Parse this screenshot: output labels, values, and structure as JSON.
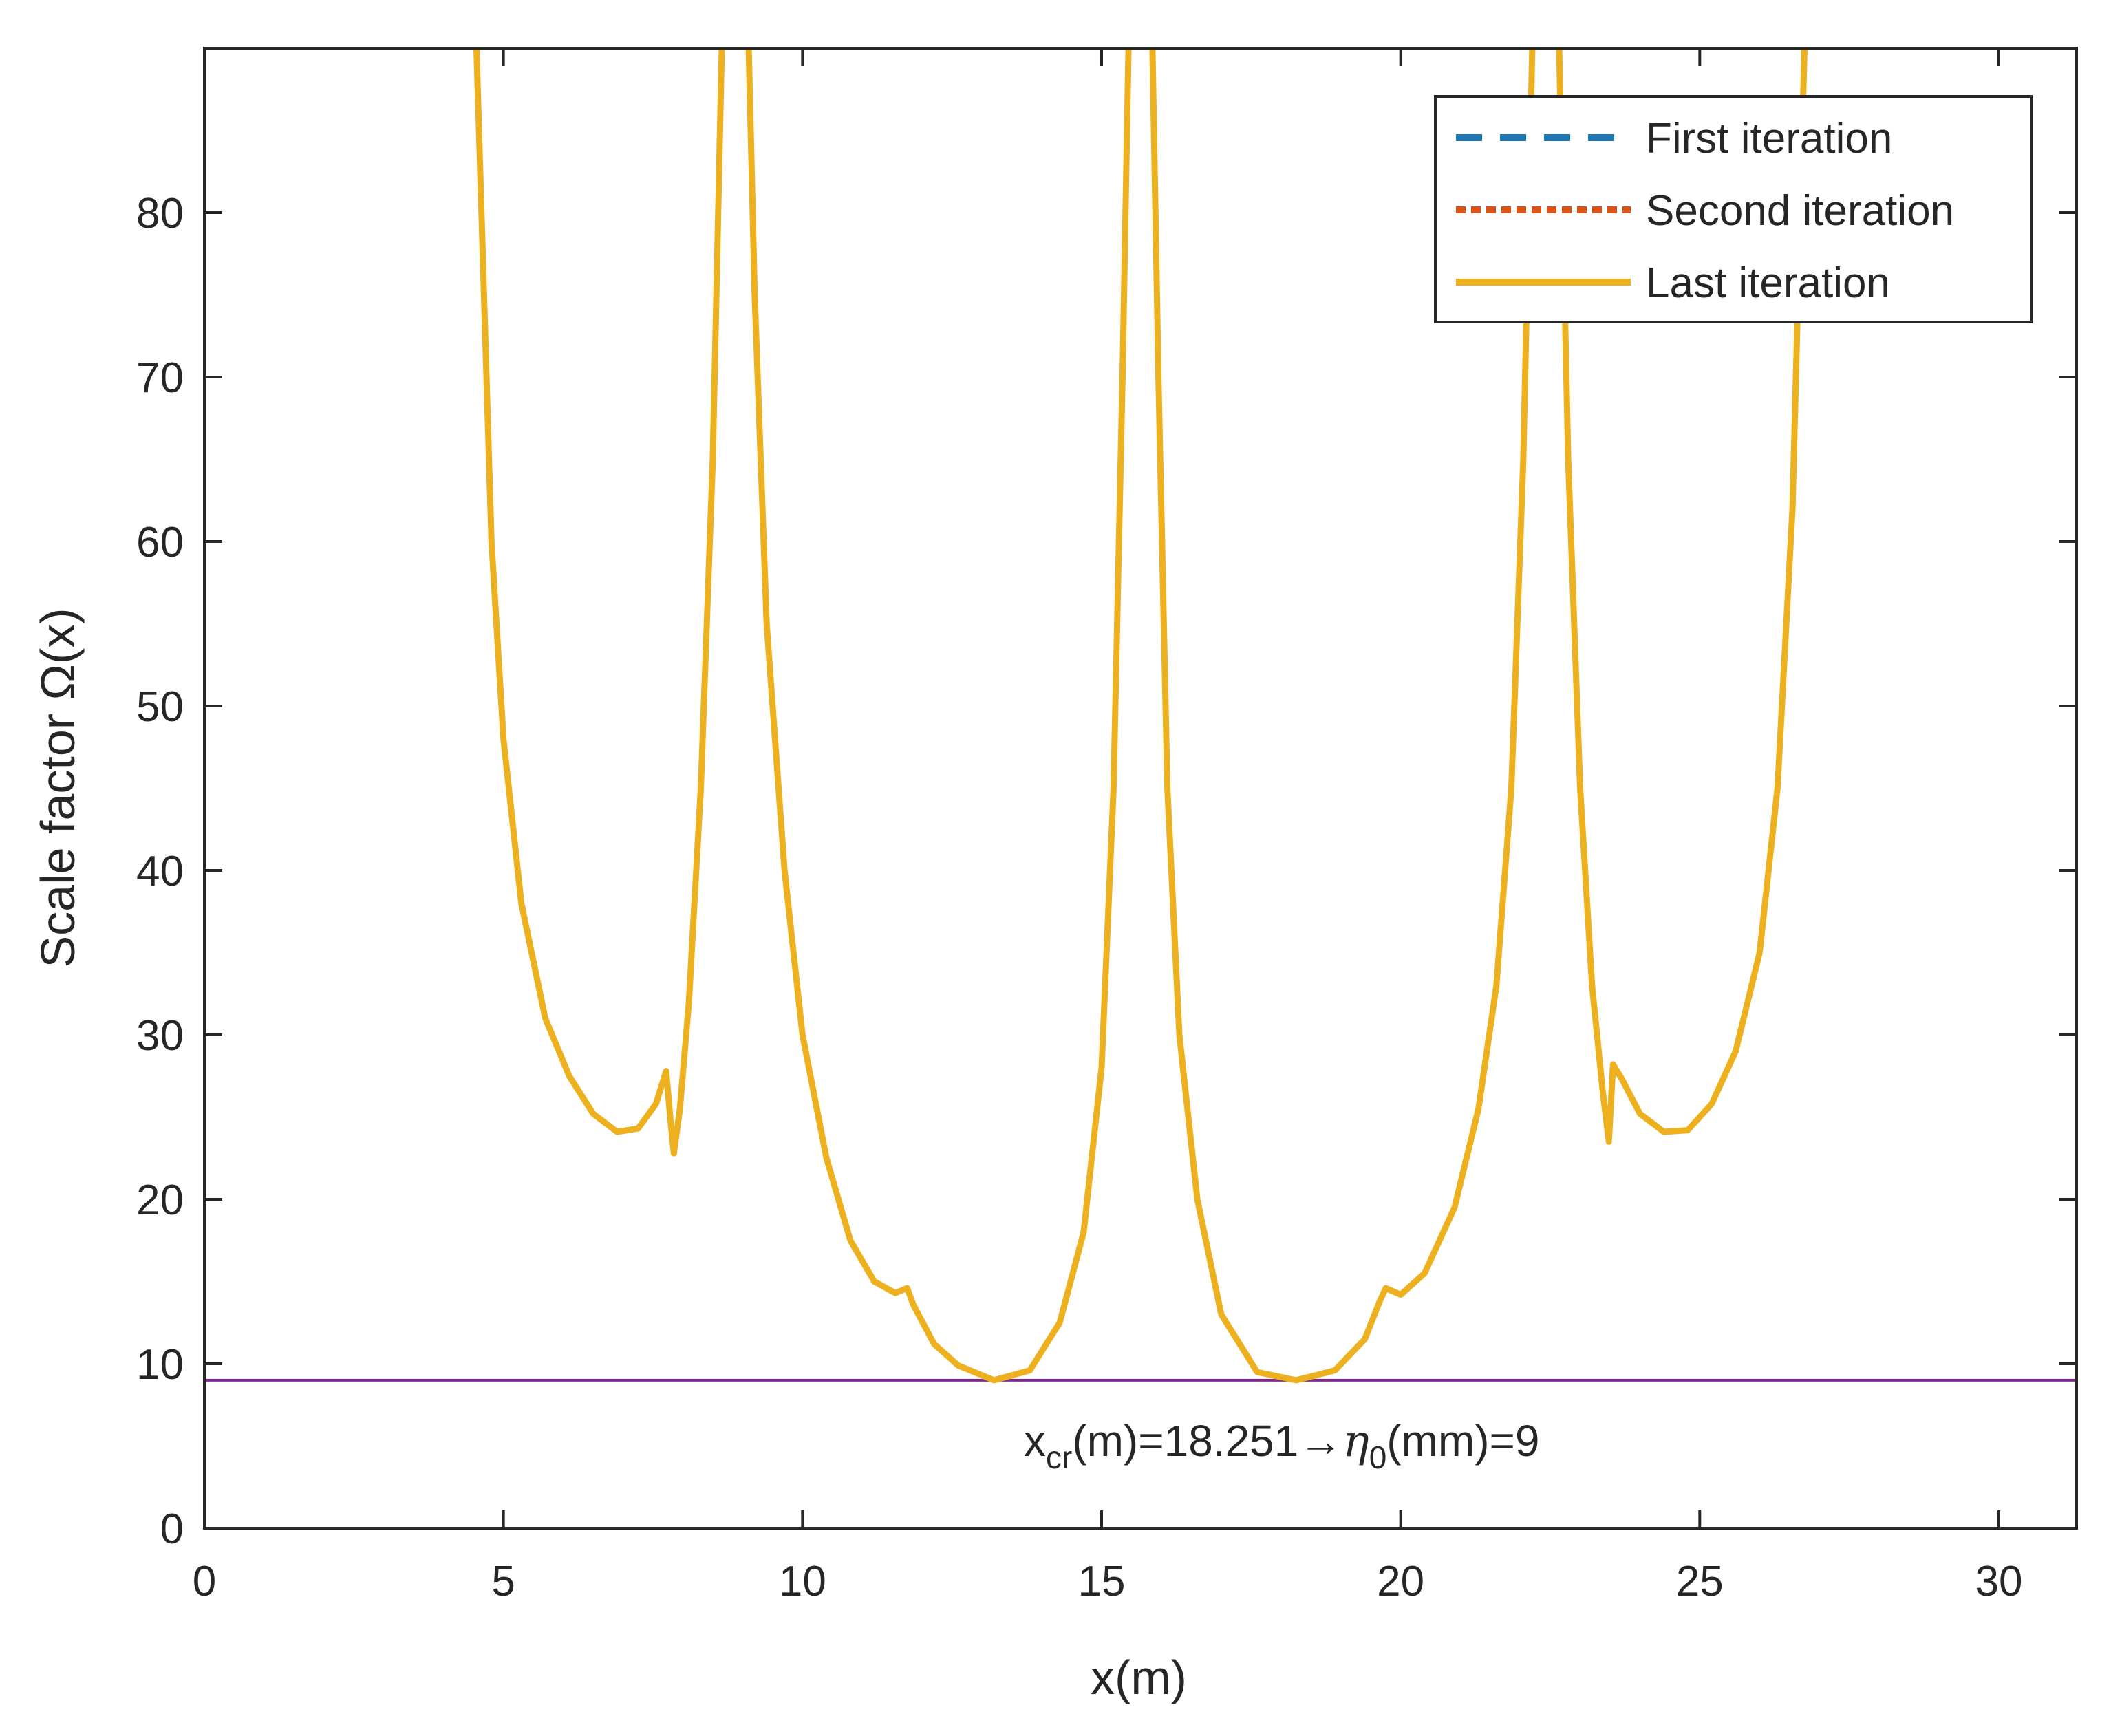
{
  "chart_data": {
    "type": "line",
    "title": "",
    "xlabel": "x(m)",
    "ylabel": "Scale factor Ω(x)",
    "xlim": [
      0,
      31.3
    ],
    "ylim": [
      0,
      90
    ],
    "xticks": [
      0,
      5,
      10,
      15,
      20,
      25,
      30
    ],
    "yticks": [
      0,
      10,
      20,
      30,
      40,
      50,
      60,
      70,
      80
    ],
    "grid": false,
    "legend_position": "top-right",
    "series": [
      {
        "name": "First iteration",
        "style": "dashed",
        "color": "#1f78b4",
        "points": []
      },
      {
        "name": "Second iteration",
        "style": "dotted",
        "color": "#d95319",
        "points": []
      },
      {
        "name": "Last iteration",
        "style": "solid",
        "color": "#edb120",
        "segments": [
          [
            [
              4.55,
              90
            ],
            [
              4.65,
              78
            ],
            [
              4.8,
              60
            ],
            [
              5.0,
              48
            ],
            [
              5.3,
              38
            ],
            [
              5.7,
              31
            ],
            [
              6.1,
              27.5
            ],
            [
              6.5,
              25.2
            ],
            [
              6.9,
              24.1
            ],
            [
              7.25,
              24.3
            ],
            [
              7.55,
              25.8
            ],
            [
              7.72,
              27.8
            ],
            [
              7.8,
              24.5
            ],
            [
              7.85,
              22.8
            ],
            [
              7.95,
              25.5
            ],
            [
              8.1,
              32
            ],
            [
              8.3,
              45
            ],
            [
              8.5,
              65
            ],
            [
              8.65,
              90
            ]
          ],
          [
            [
              9.1,
              90
            ],
            [
              9.2,
              75
            ],
            [
              9.4,
              55
            ],
            [
              9.7,
              40
            ],
            [
              10.0,
              30
            ],
            [
              10.4,
              22.5
            ],
            [
              10.8,
              17.5
            ],
            [
              11.2,
              15
            ],
            [
              11.55,
              14.3
            ],
            [
              11.75,
              14.6
            ],
            [
              11.85,
              13.6
            ],
            [
              12.2,
              11.2
            ],
            [
              12.6,
              9.9
            ],
            [
              13.2,
              9.0
            ],
            [
              13.8,
              9.6
            ],
            [
              14.3,
              12.5
            ],
            [
              14.7,
              18
            ],
            [
              15.0,
              28
            ],
            [
              15.2,
              45
            ],
            [
              15.35,
              70
            ],
            [
              15.45,
              90
            ]
          ],
          [
            [
              15.85,
              90
            ],
            [
              15.95,
              70
            ],
            [
              16.1,
              45
            ],
            [
              16.3,
              30
            ],
            [
              16.6,
              20
            ],
            [
              17.0,
              13
            ],
            [
              17.6,
              9.5
            ],
            [
              18.25,
              9.0
            ],
            [
              18.9,
              9.6
            ],
            [
              19.4,
              11.5
            ],
            [
              19.65,
              13.8
            ],
            [
              19.75,
              14.6
            ],
            [
              20.0,
              14.2
            ],
            [
              20.4,
              15.5
            ],
            [
              20.9,
              19.5
            ],
            [
              21.3,
              25.5
            ],
            [
              21.6,
              33
            ],
            [
              21.85,
              45
            ],
            [
              22.05,
              65
            ],
            [
              22.2,
              90
            ]
          ],
          [
            [
              22.65,
              90
            ],
            [
              22.8,
              65
            ],
            [
              23.0,
              45
            ],
            [
              23.2,
              33
            ],
            [
              23.38,
              26.5
            ],
            [
              23.48,
              23.5
            ],
            [
              23.55,
              28.2
            ],
            [
              23.7,
              27.3
            ],
            [
              24.0,
              25.2
            ],
            [
              24.4,
              24.1
            ],
            [
              24.8,
              24.2
            ],
            [
              25.2,
              25.8
            ],
            [
              25.6,
              29
            ],
            [
              26.0,
              35
            ],
            [
              26.3,
              45
            ],
            [
              26.55,
              62
            ],
            [
              26.75,
              90
            ]
          ]
        ]
      },
      {
        "name": "threshold",
        "style": "solid",
        "color": "#7e2f8e",
        "points": [
          [
            0,
            9
          ],
          [
            31.3,
            9
          ]
        ]
      }
    ],
    "annotation": {
      "text_before": "x",
      "sub1": "cr",
      "text_mid": "(m)=18.251→",
      "greek": "η",
      "sub2": "0",
      "text_after": "(mm)=9",
      "at_x": 13.7,
      "at_y": 4.4
    }
  }
}
